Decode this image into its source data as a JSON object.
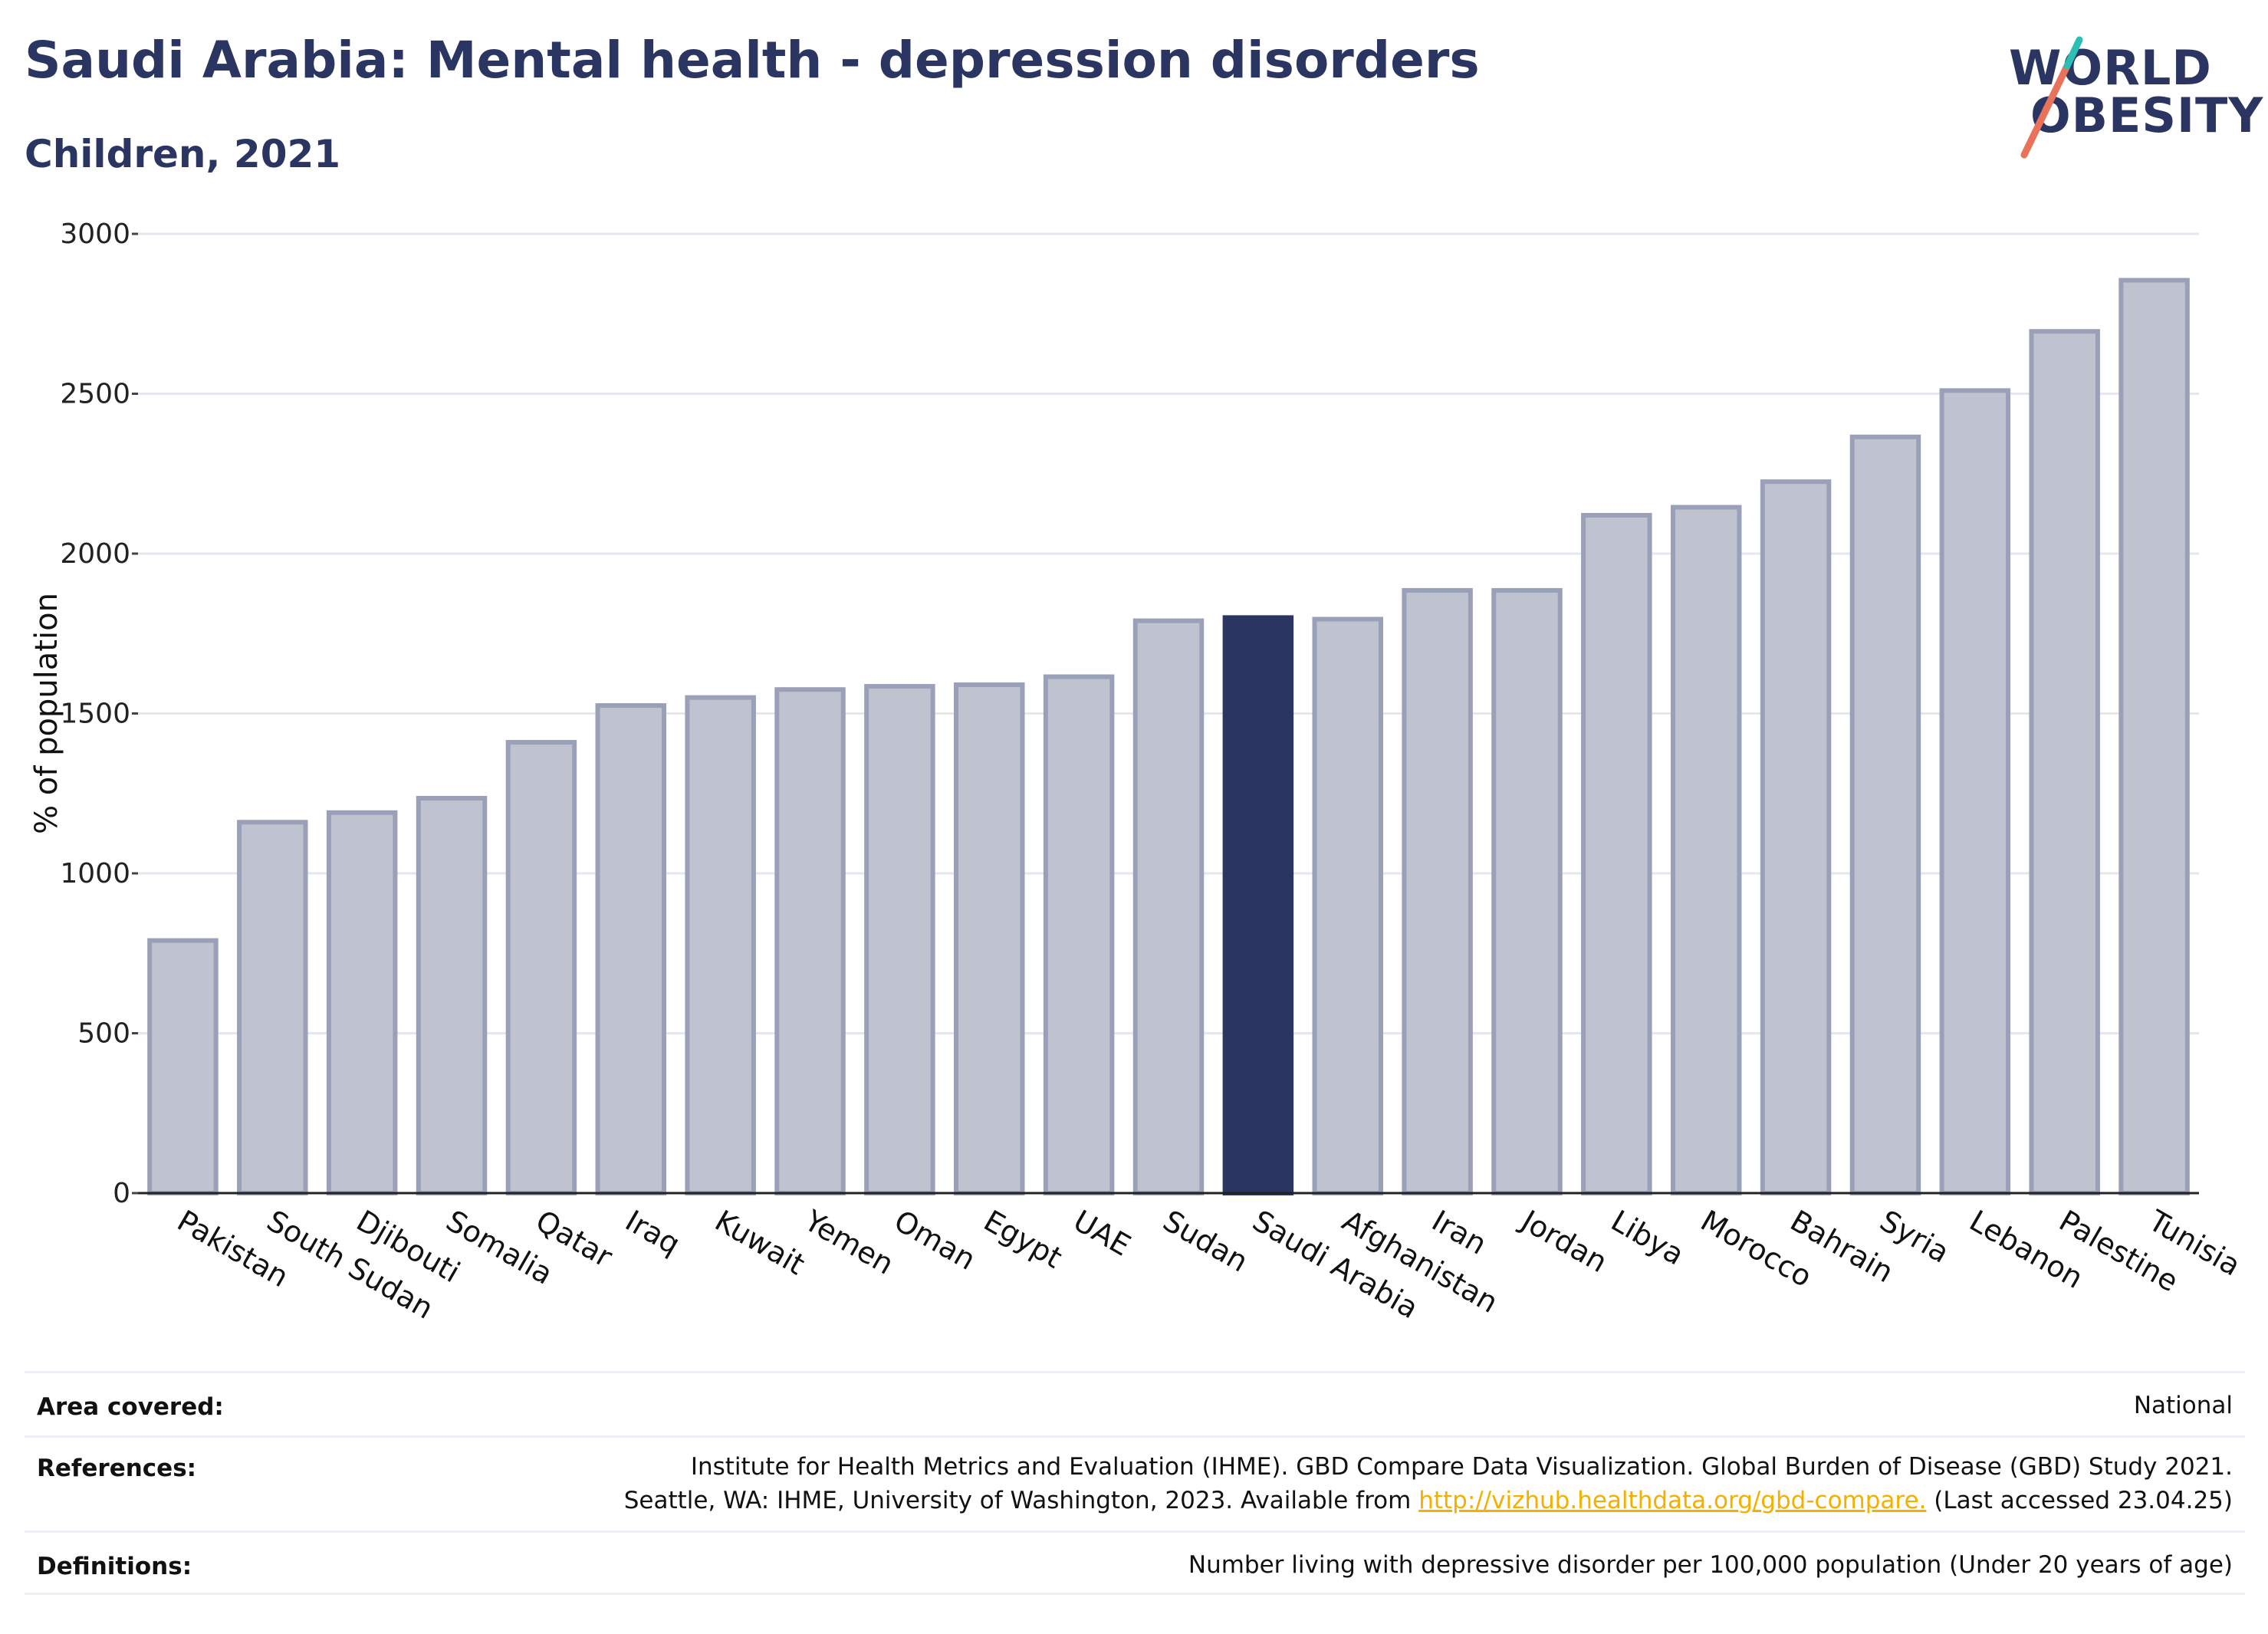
{
  "header": {
    "title": "Saudi Arabia: Mental health - depression disorders",
    "subtitle": "Children, 2021"
  },
  "logo": {
    "line1": "WORLD",
    "line2": "OBESITY",
    "brand_color": "#2b3562",
    "slash_colors": [
      "#e8735a",
      "#2dbfb4"
    ]
  },
  "colors": {
    "bar": "#bfc2cf",
    "bar_border": "#9aa0b8",
    "highlight": "#2b3562",
    "grid": "#e6e7ee",
    "axis": "#222222",
    "link": "#f4b000"
  },
  "chart_data": {
    "type": "bar",
    "title": "",
    "xlabel": "",
    "ylabel": "% of population",
    "ylim": [
      0,
      3000
    ],
    "yticks": [
      0,
      500,
      1000,
      1500,
      2000,
      2500,
      3000
    ],
    "grid": true,
    "highlight": "Saudi Arabia",
    "categories": [
      "Pakistan",
      "South Sudan",
      "Djibouti",
      "Somalia",
      "Qatar",
      "Iraq",
      "Kuwait",
      "Yemen",
      "Oman",
      "Egypt",
      "UAE",
      "Sudan",
      "Saudi Arabia",
      "Afghanistan",
      "Iran",
      "Jordan",
      "Libya",
      "Morocco",
      "Bahrain",
      "Syria",
      "Lebanon",
      "Palestine",
      "Tunisia"
    ],
    "values": [
      790,
      1160,
      1190,
      1235,
      1410,
      1525,
      1550,
      1575,
      1585,
      1590,
      1615,
      1790,
      1800,
      1795,
      1885,
      1885,
      2120,
      2145,
      2225,
      2365,
      2510,
      2695,
      2855
    ]
  },
  "footer": {
    "area_label": "Area covered:",
    "area_value": "National",
    "references_label": "References:",
    "references_line1": "Institute for Health Metrics and Evaluation (IHME). GBD Compare Data Visualization. Global Burden of Disease (GBD) Study 2021.",
    "references_line2_pre": "Seattle, WA: IHME, University of Washington, 2023. Available from ",
    "references_link": "http://vizhub.healthdata.org/gbd-compare.",
    "references_line2_post": " (Last accessed 23.04.25)",
    "definitions_label": "Definitions:",
    "definitions_value": "Number living with depressive disorder per 100,000 population (Under 20 years of age)"
  }
}
